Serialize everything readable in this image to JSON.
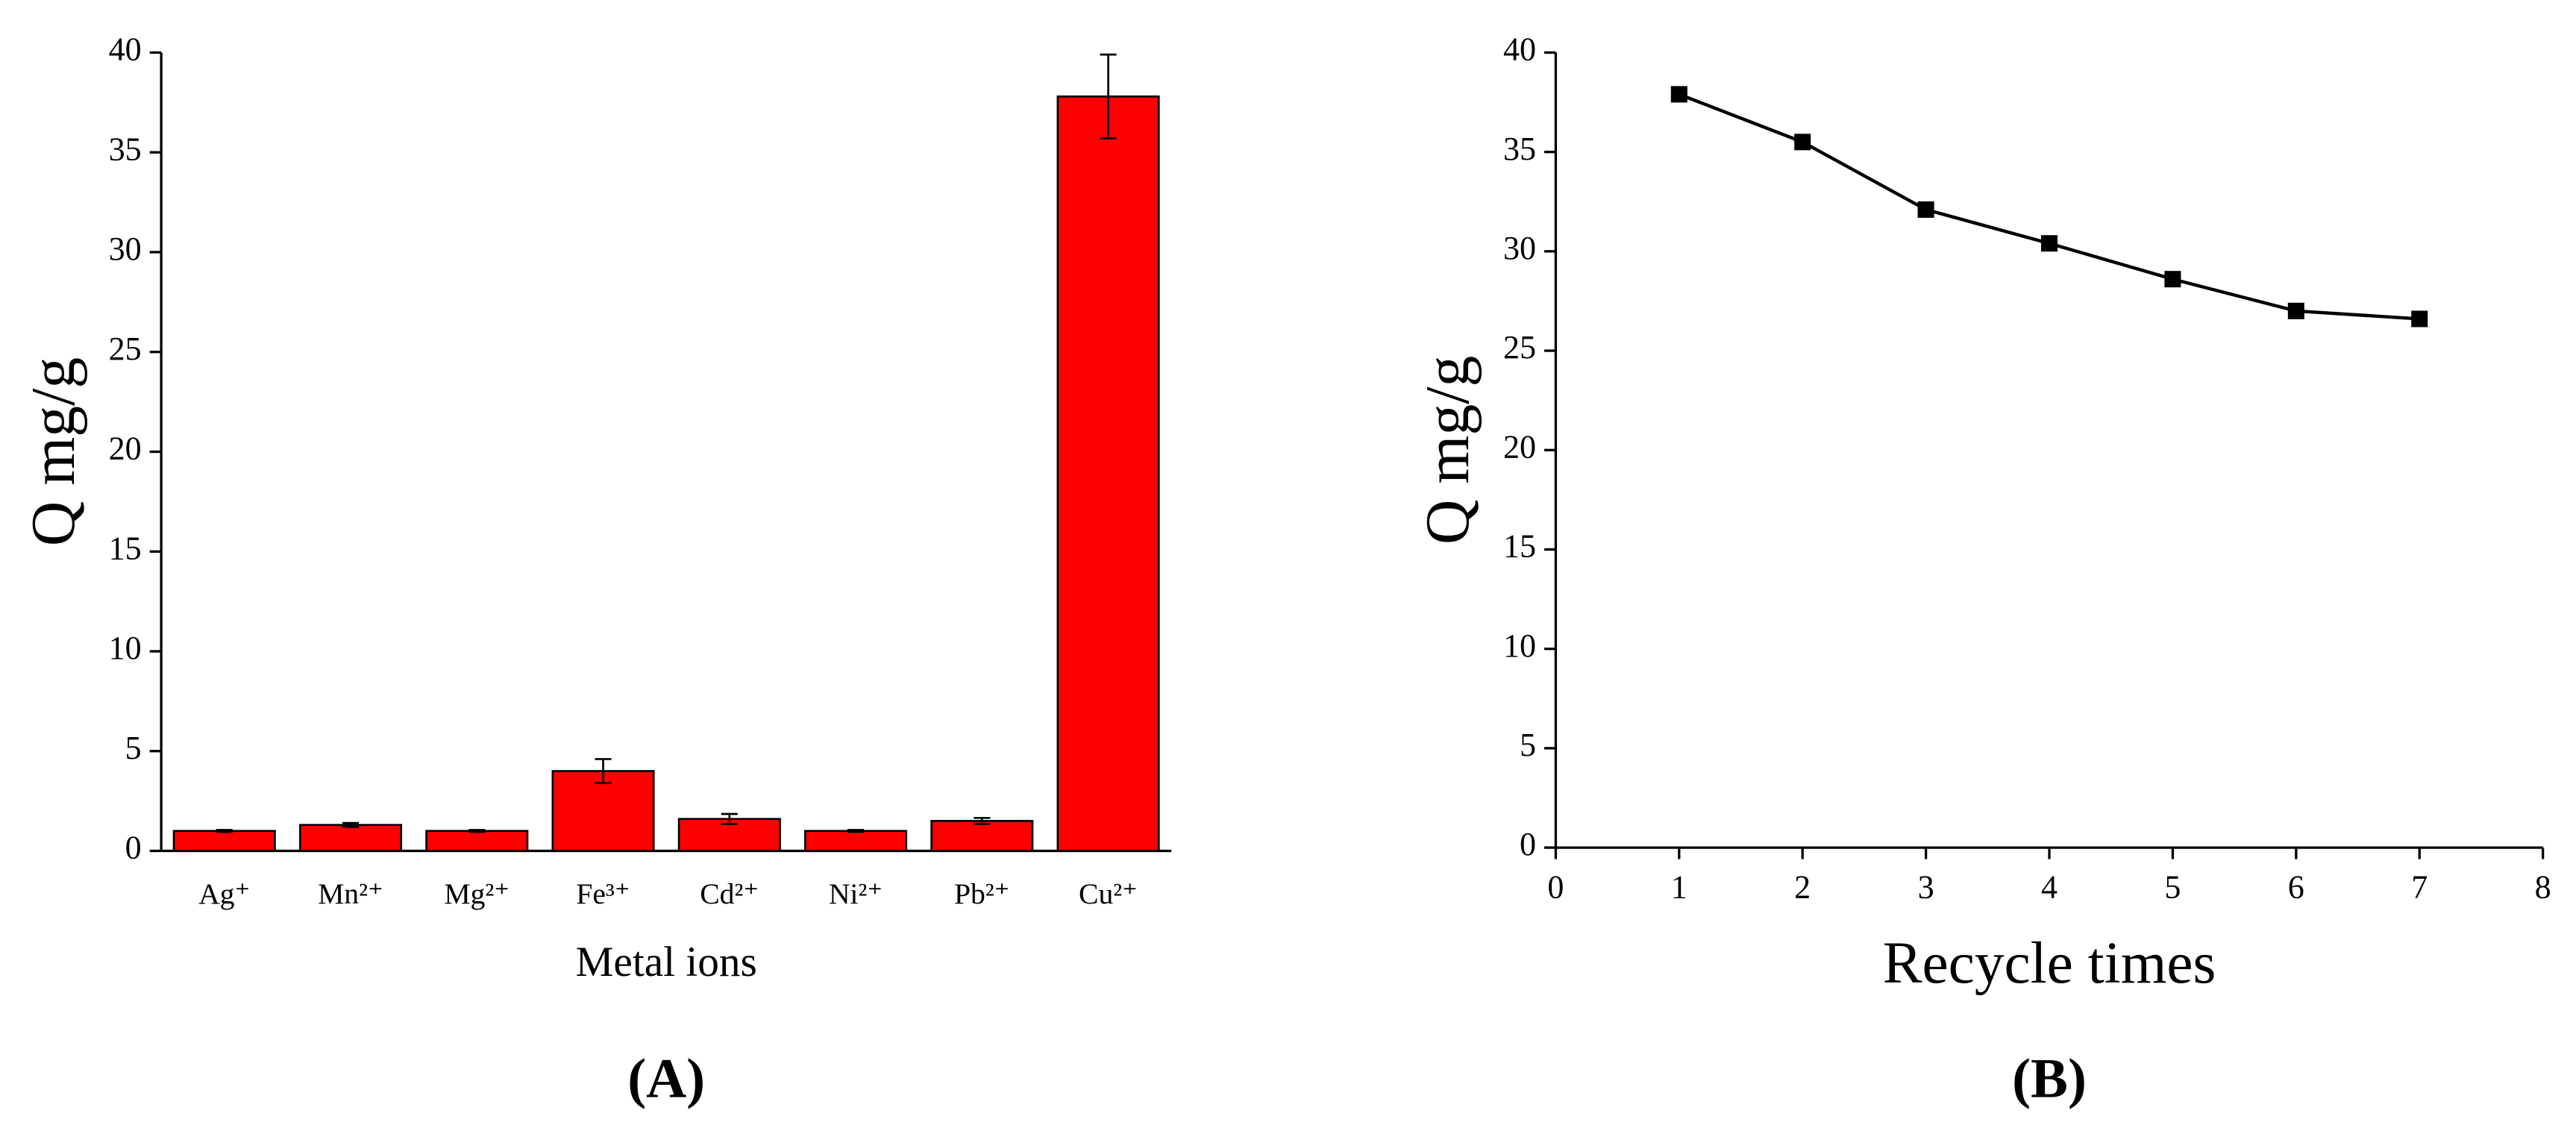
{
  "chart_data": [
    {
      "type": "bar",
      "x_label": "Metal ions",
      "y_label": "Q mg/g",
      "panel_label": "(A)",
      "categories": [
        "Ag⁺",
        "Mn²⁺",
        "Mg²⁺",
        "Fe³⁺",
        "Cd²⁺",
        "Ni²⁺",
        "Pb²⁺",
        "Cu²⁺"
      ],
      "values": [
        1.0,
        1.3,
        1.0,
        4.0,
        1.6,
        1.0,
        1.5,
        37.8
      ],
      "errors": [
        0.05,
        0.1,
        0.05,
        0.6,
        0.25,
        0.05,
        0.15,
        2.1
      ],
      "color": "#ff0000",
      "ylim": [
        0,
        40
      ],
      "yticks": [
        0,
        5,
        10,
        15,
        20,
        25,
        30,
        35,
        40
      ]
    },
    {
      "type": "line",
      "x_label": "Recycle times",
      "y_label": "Q mg/g",
      "panel_label": "(B)",
      "x": [
        1,
        2,
        3,
        4,
        5,
        6,
        7
      ],
      "values": [
        37.9,
        35.5,
        32.1,
        30.4,
        28.6,
        27.0,
        26.6
      ],
      "color": "#000000",
      "xlim": [
        0,
        8
      ],
      "xticks": [
        0,
        1,
        2,
        3,
        4,
        5,
        6,
        7,
        8
      ],
      "ylim": [
        0,
        40
      ],
      "yticks": [
        0,
        5,
        10,
        15,
        20,
        25,
        30,
        35,
        40
      ]
    }
  ]
}
